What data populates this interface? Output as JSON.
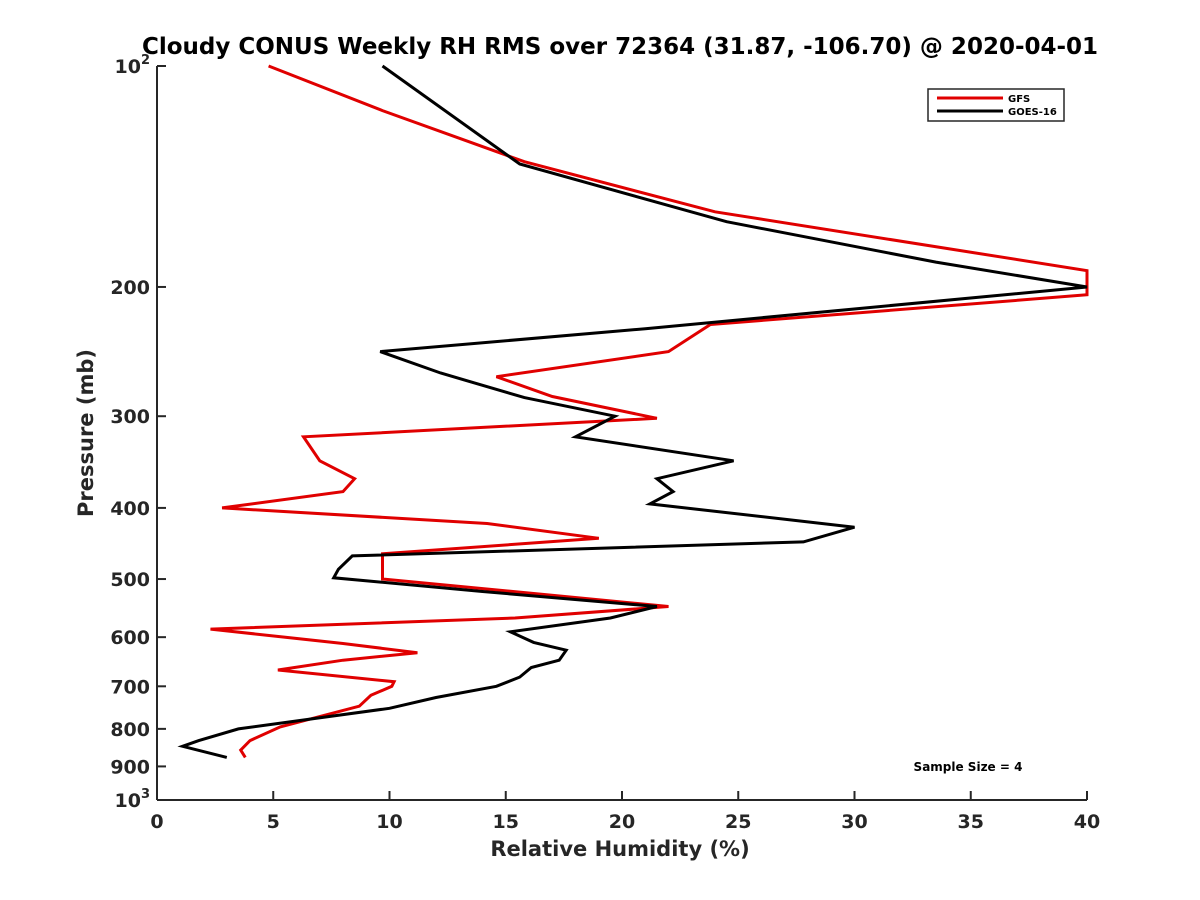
{
  "chart_data": {
    "type": "line",
    "title": "Cloudy CONUS Weekly RH RMS over 72364 (31.87, -106.70) @ 2020-04-01",
    "xlabel": "Relative Humidity (%)",
    "ylabel": "Pressure (mb)",
    "xlim": [
      0,
      40
    ],
    "ylim": [
      100,
      1000
    ],
    "y_scale": "log",
    "y_reversed": true,
    "grid": false,
    "legend_position": "top-right",
    "x_ticks": [
      0,
      5,
      10,
      15,
      20,
      25,
      30,
      35,
      40
    ],
    "y_ticks": [
      {
        "value": 100,
        "label": "10",
        "sup": "2"
      },
      {
        "value": 200,
        "label": "200",
        "sup": ""
      },
      {
        "value": 300,
        "label": "300",
        "sup": ""
      },
      {
        "value": 400,
        "label": "400",
        "sup": ""
      },
      {
        "value": 500,
        "label": "500",
        "sup": ""
      },
      {
        "value": 600,
        "label": "600",
        "sup": ""
      },
      {
        "value": 700,
        "label": "700",
        "sup": ""
      },
      {
        "value": 800,
        "label": "800",
        "sup": ""
      },
      {
        "value": 900,
        "label": "900",
        "sup": ""
      },
      {
        "value": 1000,
        "label": "10",
        "sup": "3"
      }
    ],
    "series": [
      {
        "name": "GFS",
        "color": "#e00000",
        "points": [
          [
            4.8,
            100
          ],
          [
            9.7,
            115
          ],
          [
            15.8,
            135
          ],
          [
            24.0,
            158
          ],
          [
            40.0,
            190
          ],
          [
            40.0,
            205
          ],
          [
            23.8,
            225
          ],
          [
            22.0,
            245
          ],
          [
            14.6,
            265
          ],
          [
            17.0,
            282
          ],
          [
            21.5,
            302
          ],
          [
            6.3,
            320
          ],
          [
            7.0,
            345
          ],
          [
            8.5,
            365
          ],
          [
            8.0,
            380
          ],
          [
            2.8,
            400
          ],
          [
            14.2,
            420
          ],
          [
            19.0,
            440
          ],
          [
            9.7,
            462
          ],
          [
            9.7,
            500
          ],
          [
            22.0,
            545
          ],
          [
            15.4,
            565
          ],
          [
            2.3,
            585
          ],
          [
            8.0,
            612
          ],
          [
            11.2,
            630
          ],
          [
            8.0,
            645
          ],
          [
            5.2,
            665
          ],
          [
            10.2,
            690
          ],
          [
            10.1,
            700
          ],
          [
            9.2,
            720
          ],
          [
            8.7,
            745
          ],
          [
            5.3,
            795
          ],
          [
            4.0,
            830
          ],
          [
            3.6,
            855
          ],
          [
            3.8,
            875
          ]
        ]
      },
      {
        "name": "GOES-16",
        "color": "#000000",
        "points": [
          [
            9.7,
            100
          ],
          [
            15.6,
            136
          ],
          [
            24.5,
            163
          ],
          [
            33.5,
            185
          ],
          [
            40.0,
            200
          ],
          [
            21.0,
            228
          ],
          [
            9.6,
            245
          ],
          [
            12.2,
            262
          ],
          [
            15.8,
            283
          ],
          [
            19.7,
            300
          ],
          [
            18.0,
            320
          ],
          [
            24.8,
            345
          ],
          [
            21.5,
            365
          ],
          [
            22.2,
            380
          ],
          [
            21.2,
            395
          ],
          [
            30.0,
            425
          ],
          [
            27.8,
            445
          ],
          [
            8.4,
            465
          ],
          [
            7.8,
            485
          ],
          [
            7.6,
            498
          ],
          [
            14.0,
            520
          ],
          [
            21.5,
            545
          ],
          [
            19.5,
            565
          ],
          [
            15.2,
            590
          ],
          [
            16.2,
            610
          ],
          [
            17.6,
            625
          ],
          [
            17.3,
            645
          ],
          [
            16.1,
            660
          ],
          [
            15.6,
            680
          ],
          [
            14.6,
            700
          ],
          [
            12.0,
            725
          ],
          [
            10.0,
            750
          ],
          [
            3.5,
            800
          ],
          [
            1.8,
            830
          ],
          [
            1.1,
            845
          ],
          [
            3.0,
            875
          ]
        ]
      }
    ],
    "annotation": "Sample Size = 4"
  }
}
